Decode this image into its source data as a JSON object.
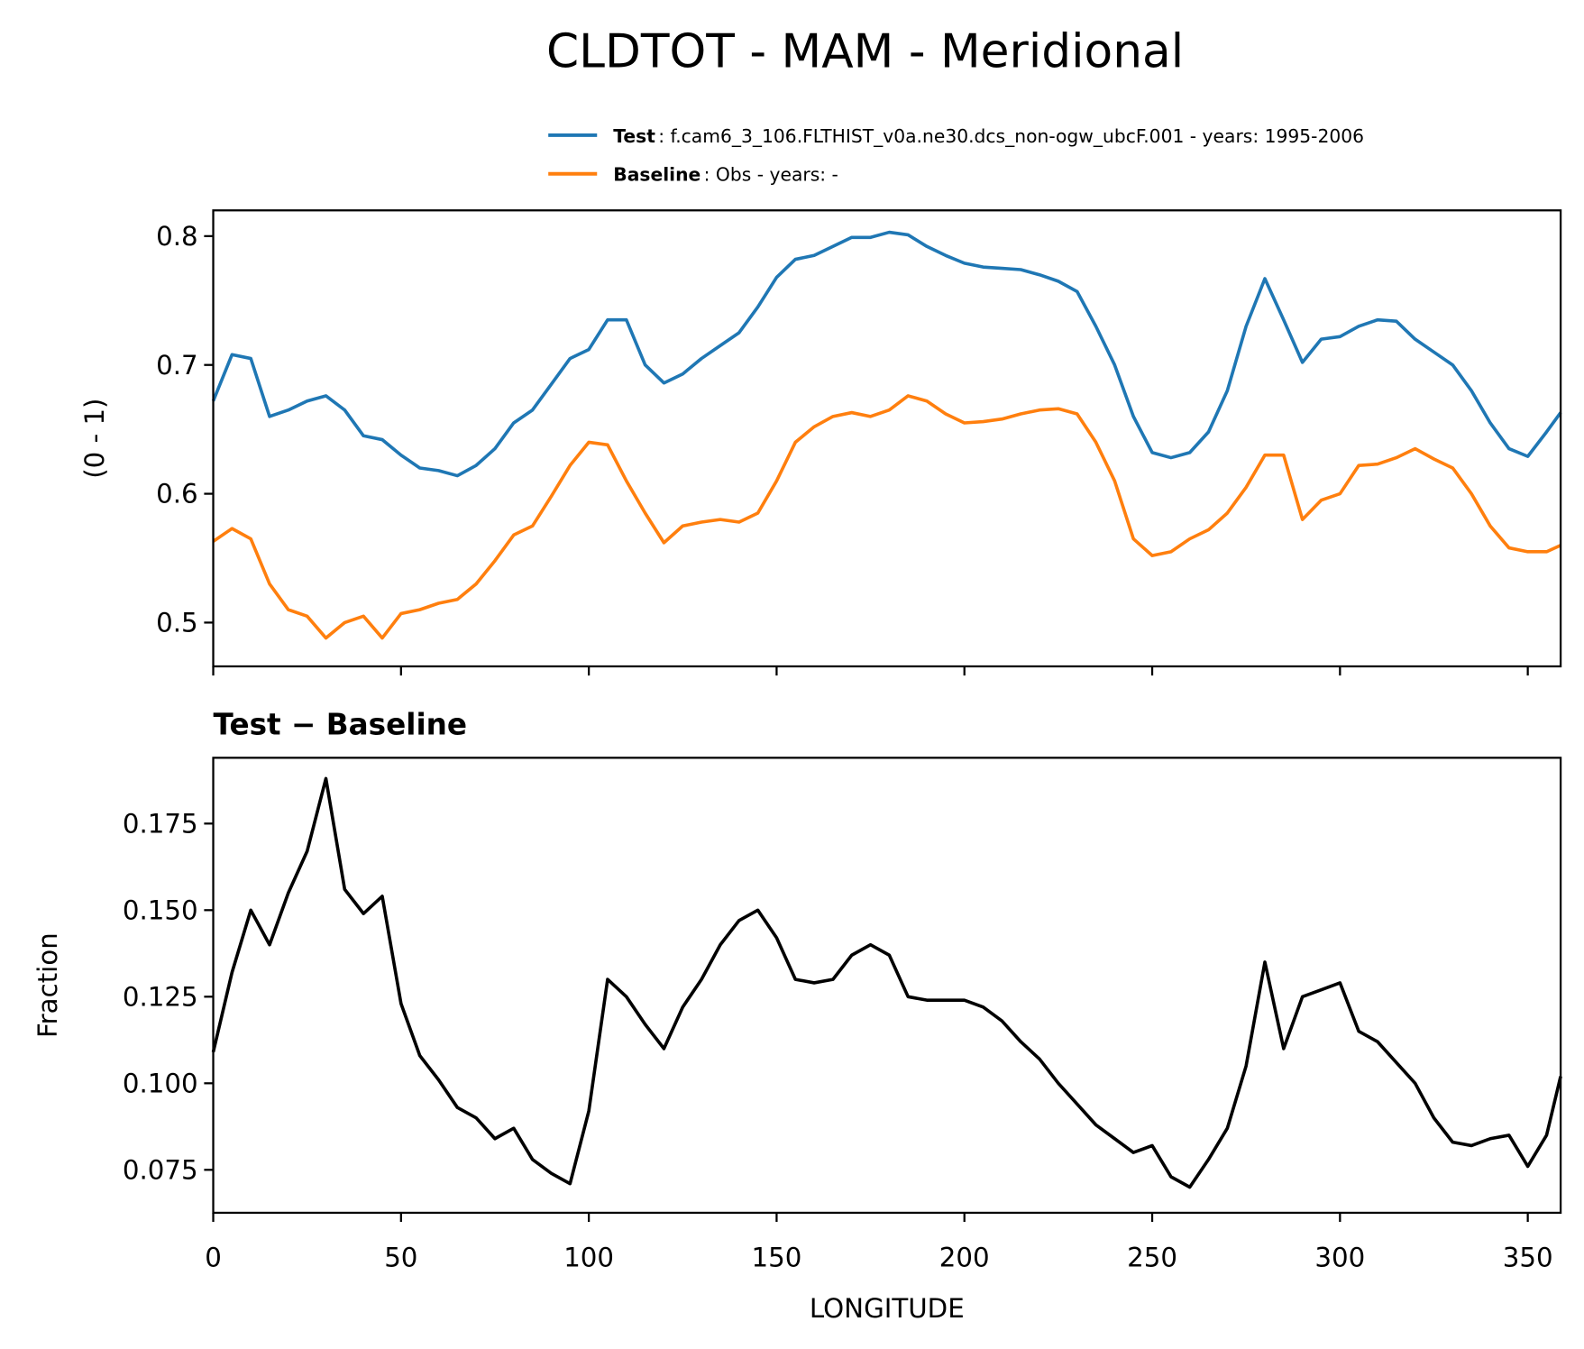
{
  "chart_data": [
    {
      "type": "line",
      "title": "CLDTOT - MAM - Meridional",
      "ylabel": "(0 - 1)",
      "x": [
        0,
        5,
        10,
        15,
        20,
        25,
        30,
        35,
        40,
        45,
        50,
        55,
        60,
        65,
        70,
        75,
        80,
        85,
        90,
        95,
        100,
        105,
        110,
        115,
        120,
        125,
        130,
        135,
        140,
        145,
        150,
        155,
        160,
        165,
        170,
        175,
        180,
        185,
        190,
        195,
        200,
        205,
        210,
        215,
        220,
        225,
        230,
        235,
        240,
        245,
        250,
        255,
        260,
        265,
        270,
        275,
        280,
        285,
        290,
        295,
        300,
        305,
        310,
        315,
        320,
        325,
        330,
        335,
        340,
        345,
        350,
        355,
        358.75
      ],
      "series": [
        {
          "name": "Test",
          "description": ": f.cam6_3_106.FLTHIST_v0a.ne30.dcs_non-ogw_ubcF.001 - years: 1995-2006",
          "color": "#1f77b4",
          "values": [
            0.672,
            0.708,
            0.705,
            0.66,
            0.665,
            0.672,
            0.676,
            0.665,
            0.645,
            0.642,
            0.63,
            0.62,
            0.618,
            0.614,
            0.622,
            0.635,
            0.655,
            0.665,
            0.685,
            0.705,
            0.712,
            0.735,
            0.735,
            0.7,
            0.686,
            0.693,
            0.705,
            0.715,
            0.725,
            0.745,
            0.768,
            0.782,
            0.785,
            0.792,
            0.799,
            0.799,
            0.803,
            0.801,
            0.792,
            0.785,
            0.779,
            0.776,
            0.775,
            0.774,
            0.77,
            0.765,
            0.757,
            0.73,
            0.7,
            0.66,
            0.632,
            0.628,
            0.632,
            0.648,
            0.68,
            0.73,
            0.767,
            0.735,
            0.702,
            0.72,
            0.722,
            0.73,
            0.735,
            0.734,
            0.72,
            0.71,
            0.7,
            0.68,
            0.655,
            0.635,
            0.629,
            0.648,
            0.663
          ]
        },
        {
          "name": "Baseline",
          "description": ": Obs - years: -",
          "color": "#ff7f0e",
          "values": [
            0.563,
            0.573,
            0.565,
            0.53,
            0.51,
            0.505,
            0.488,
            0.5,
            0.505,
            0.488,
            0.507,
            0.51,
            0.515,
            0.518,
            0.53,
            0.548,
            0.568,
            0.575,
            0.598,
            0.622,
            0.64,
            0.638,
            0.61,
            0.585,
            0.562,
            0.575,
            0.578,
            0.58,
            0.578,
            0.585,
            0.61,
            0.64,
            0.652,
            0.66,
            0.663,
            0.66,
            0.665,
            0.676,
            0.672,
            0.662,
            0.655,
            0.656,
            0.658,
            0.662,
            0.665,
            0.666,
            0.662,
            0.64,
            0.61,
            0.565,
            0.552,
            0.555,
            0.565,
            0.572,
            0.585,
            0.605,
            0.63,
            0.63,
            0.58,
            0.595,
            0.6,
            0.622,
            0.623,
            0.628,
            0.635,
            0.627,
            0.62,
            0.6,
            0.575,
            0.558,
            0.555,
            0.555,
            0.56
          ]
        }
      ],
      "xlim": [
        0,
        358.75
      ],
      "xticks": [
        0,
        50,
        100,
        150,
        200,
        250,
        300,
        350
      ],
      "xtick_labels": false,
      "ylim": [
        0.466,
        0.82
      ],
      "yticks": [
        0.5,
        0.6,
        0.7,
        0.8
      ],
      "grid": false
    },
    {
      "type": "line",
      "title": "Test − Baseline",
      "xlabel": "LONGITUDE",
      "ylabel": "Fraction",
      "x": [
        0,
        5,
        10,
        15,
        20,
        25,
        30,
        35,
        40,
        45,
        50,
        55,
        60,
        65,
        70,
        75,
        80,
        85,
        90,
        95,
        100,
        105,
        110,
        115,
        120,
        125,
        130,
        135,
        140,
        145,
        150,
        155,
        160,
        165,
        170,
        175,
        180,
        185,
        190,
        195,
        200,
        205,
        210,
        215,
        220,
        225,
        230,
        235,
        240,
        245,
        250,
        255,
        260,
        265,
        270,
        275,
        280,
        285,
        290,
        295,
        300,
        305,
        310,
        315,
        320,
        325,
        330,
        335,
        340,
        345,
        350,
        355,
        358.75
      ],
      "series": [
        {
          "color": "#000000",
          "values": [
            0.109,
            0.132,
            0.15,
            0.14,
            0.155,
            0.167,
            0.188,
            0.156,
            0.149,
            0.154,
            0.123,
            0.108,
            0.101,
            0.093,
            0.09,
            0.084,
            0.087,
            0.078,
            0.074,
            0.071,
            0.092,
            0.13,
            0.125,
            0.117,
            0.11,
            0.122,
            0.13,
            0.14,
            0.147,
            0.15,
            0.142,
            0.13,
            0.129,
            0.13,
            0.137,
            0.14,
            0.137,
            0.125,
            0.124,
            0.124,
            0.124,
            0.122,
            0.118,
            0.112,
            0.107,
            0.1,
            0.094,
            0.088,
            0.084,
            0.08,
            0.082,
            0.073,
            0.07,
            0.078,
            0.087,
            0.105,
            0.135,
            0.11,
            0.125,
            0.127,
            0.129,
            0.115,
            0.112,
            0.106,
            0.1,
            0.09,
            0.083,
            0.082,
            0.084,
            0.085,
            0.076,
            0.085,
            0.102
          ]
        }
      ],
      "xlim": [
        0,
        358.75
      ],
      "xticks": [
        0,
        50,
        100,
        150,
        200,
        250,
        300,
        350
      ],
      "xtick_labels": true,
      "ylim": [
        0.0626,
        0.194
      ],
      "yticks": [
        0.075,
        {
          "value": 0.1,
          "label": "0.100"
        },
        0.125,
        {
          "value": 0.15,
          "label": "0.150"
        },
        0.175
      ],
      "grid": false
    }
  ]
}
